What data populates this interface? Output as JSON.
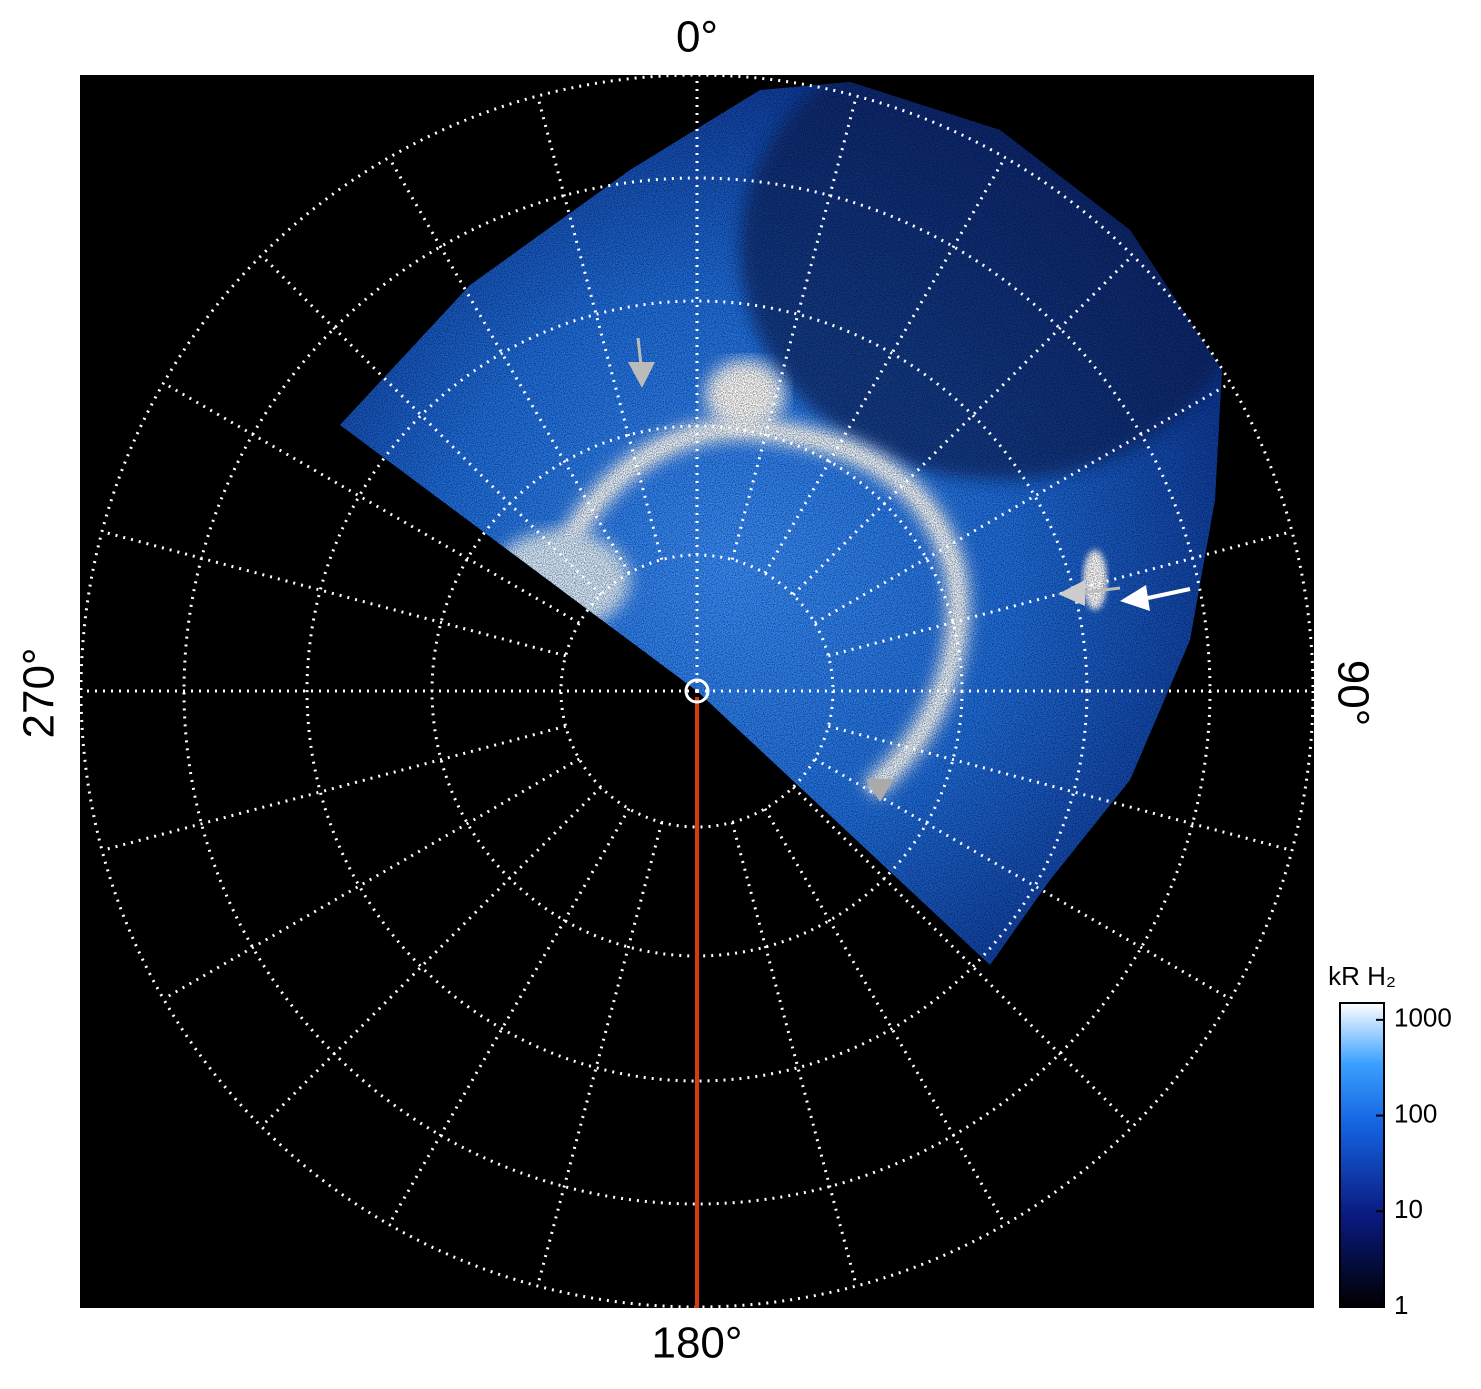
{
  "labels": {
    "top": "0°",
    "right": "90°",
    "bottom": "180°",
    "left": "270°"
  },
  "colorbar": {
    "title": "kR H₂",
    "lim": [
      1,
      1500
    ],
    "ticks": [
      1,
      10,
      100,
      1000
    ],
    "log": true
  }
}
